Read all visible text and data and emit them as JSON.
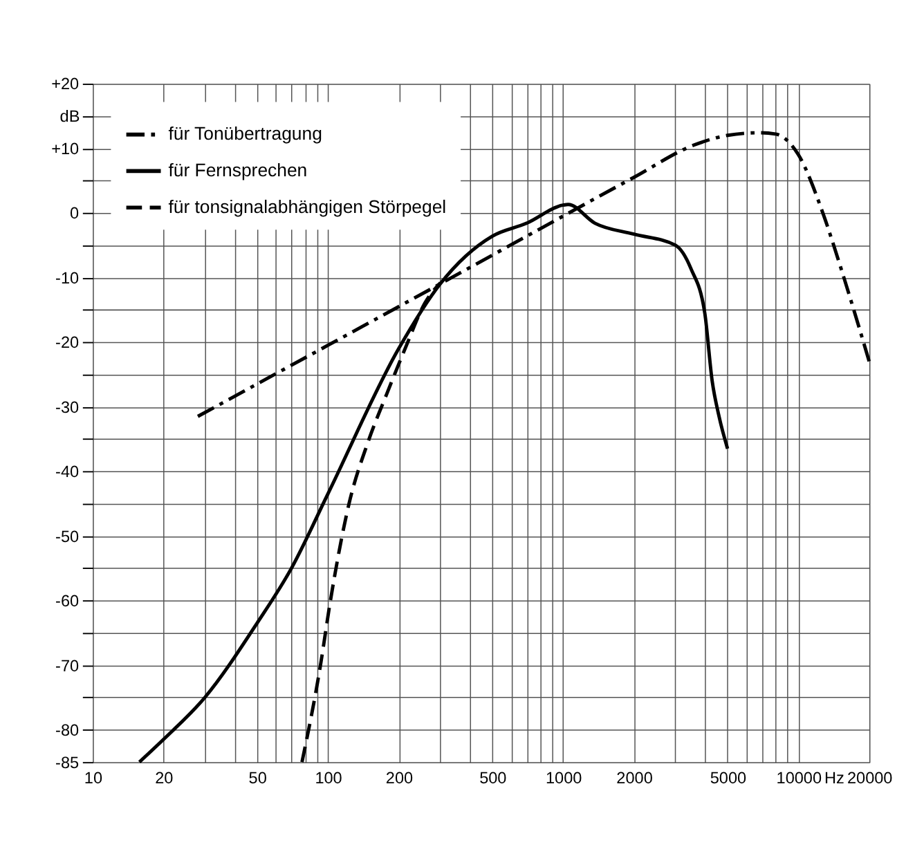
{
  "chart_data": {
    "type": "line",
    "xlabel": "Hz",
    "ylabel": "dB",
    "log": "x",
    "xlim": [
      10,
      20000
    ],
    "ylim": [
      -85,
      20
    ],
    "xticks": [
      10,
      20,
      {
        "value": 30,
        "label": null
      },
      {
        "value": 40,
        "label": null
      },
      50,
      {
        "value": 60,
        "label": null
      },
      {
        "value": 70,
        "label": null
      },
      {
        "value": 80,
        "label": null
      },
      {
        "value": 90,
        "label": null
      },
      100,
      200,
      {
        "value": 300,
        "label": null
      },
      {
        "value": 400,
        "label": null
      },
      500,
      {
        "value": 600,
        "label": null
      },
      {
        "value": 700,
        "label": null
      },
      {
        "value": 800,
        "label": null
      },
      {
        "value": 900,
        "label": null
      },
      1000,
      2000,
      {
        "value": 3000,
        "label": null
      },
      {
        "value": 4000,
        "label": null
      },
      5000,
      {
        "value": 6000,
        "label": null
      },
      {
        "value": 7000,
        "label": null
      },
      {
        "value": 8000,
        "label": null
      },
      {
        "value": 9000,
        "label": null
      },
      10000,
      20000
    ],
    "yticks": [
      {
        "value": 20,
        "label": "+20"
      },
      {
        "value": 15,
        "label": null
      },
      {
        "value": 10,
        "label": "+10"
      },
      {
        "value": 5,
        "label": null
      },
      0,
      {
        "value": -5,
        "label": null
      },
      -10,
      {
        "value": -15,
        "label": null
      },
      -20,
      {
        "value": -25,
        "label": null
      },
      -30,
      {
        "value": -35,
        "label": null
      },
      -40,
      {
        "value": -45,
        "label": null
      },
      -50,
      {
        "value": -55,
        "label": null
      },
      -60,
      {
        "value": -65,
        "label": null
      },
      -70,
      {
        "value": -75,
        "label": null
      },
      -80,
      -85
    ],
    "grid": true,
    "legend": "top left",
    "marker": "none",
    "series": [
      {
        "name": "für Tonübertragung",
        "color": "#000000",
        "line_style": "dashdot",
        "x": [
          28,
          100,
          300,
          1000,
          2000,
          3600,
          5000,
          6800,
          8000,
          10000,
          12700,
          15000,
          17200,
          20000
        ],
        "values": [
          -31.5,
          -20.5,
          -11,
          -0.5,
          5.5,
          10.5,
          12,
          12.4,
          12.2,
          9,
          0,
          -8,
          -15,
          -23
        ]
      },
      {
        "name": "für Fernsprechen",
        "color": "#000000",
        "line_style": "solid",
        "x": [
          15.8,
          20,
          30,
          50,
          70,
          100,
          200,
          300,
          500,
          700,
          1000,
          1050,
          1365,
          2000,
          3000,
          3500,
          4000,
          4300,
          4600,
          5000
        ],
        "values": [
          -85,
          -81.5,
          -75,
          -63.5,
          -55,
          -43.5,
          -21,
          -11,
          -3.6,
          -1.6,
          1.2,
          1.3,
          -1.6,
          -3.3,
          -5,
          -8.7,
          -15.5,
          -26,
          -31.5,
          -36.5
        ]
      },
      {
        "name": "für tonsignalabhängigen Störpegel",
        "color": "#000000",
        "line_style": "dashed",
        "x": [
          77.6,
          93,
          102,
          123,
          148,
          178,
          213,
          258,
          301
        ],
        "values": [
          -85,
          -70,
          -60.5,
          -45,
          -35.5,
          -28,
          -21,
          -14,
          -10.8
        ]
      }
    ]
  }
}
